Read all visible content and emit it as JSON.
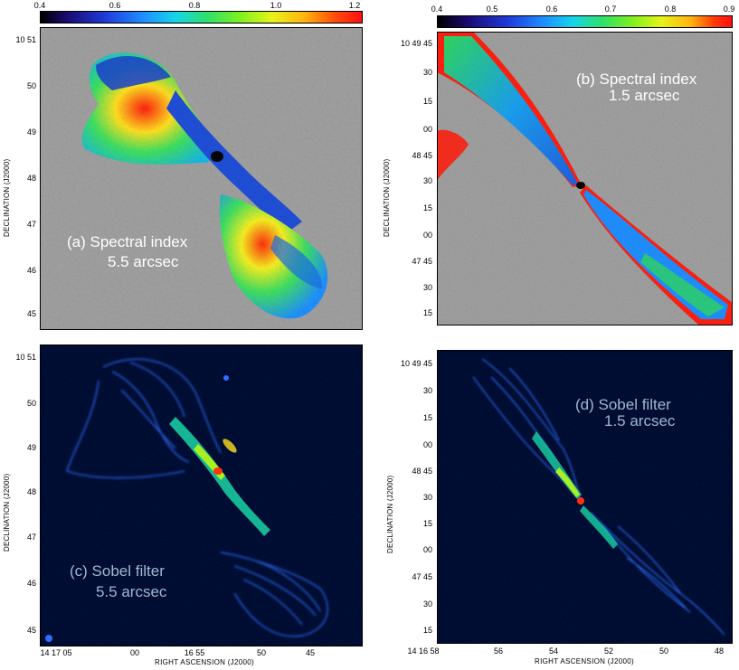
{
  "panel_a": {
    "colorbar_ticks": [
      "0.4",
      "0.6",
      "0.8",
      "1.0",
      "1.2"
    ],
    "dec_ticks": [
      "10 51",
      "50",
      "49",
      "48",
      "47",
      "46",
      "45"
    ],
    "ylabel": "DECLINATION (J2000)",
    "caption_line1": "(a) Spectral index",
    "caption_line2": "5.5 arcsec"
  },
  "panel_b": {
    "colorbar_ticks": [
      "0.4",
      "0.5",
      "0.6",
      "0.7",
      "0.8",
      "0.9"
    ],
    "dec_ticks": [
      "10 49 45",
      "30",
      "15",
      "00",
      "48 45",
      "30",
      "15",
      "00",
      "47 45",
      "30",
      "15"
    ],
    "ylabel": "DECLINATION (J2000)",
    "caption_line1": "(b) Spectral index",
    "caption_line2": "1.5 arcsec"
  },
  "panel_c": {
    "dec_ticks": [
      "10 51",
      "50",
      "49",
      "48",
      "47",
      "46",
      "45"
    ],
    "ra_ticks": [
      "14 17 05",
      "00",
      "16 55",
      "50",
      "45"
    ],
    "ylabel": "DECLINATION (J2000)",
    "xlabel": "RIGHT ASCENSION (J2000)",
    "caption_line1": "(c) Sobel filter",
    "caption_line2": "5.5 arcsec"
  },
  "panel_d": {
    "dec_ticks": [
      "10 49 45",
      "30",
      "15",
      "00",
      "48 45",
      "30",
      "15",
      "00",
      "47 45",
      "30",
      "15"
    ],
    "ra_ticks": [
      "14 16 58",
      "56",
      "54",
      "52",
      "50",
      "48"
    ],
    "ylabel": "DECLINATION (J2000)",
    "xlabel": "RIGHT ASCENSION (J2000)",
    "caption_line1": "(d) Sobel filter",
    "caption_line2": "1.5 arcsec"
  }
}
